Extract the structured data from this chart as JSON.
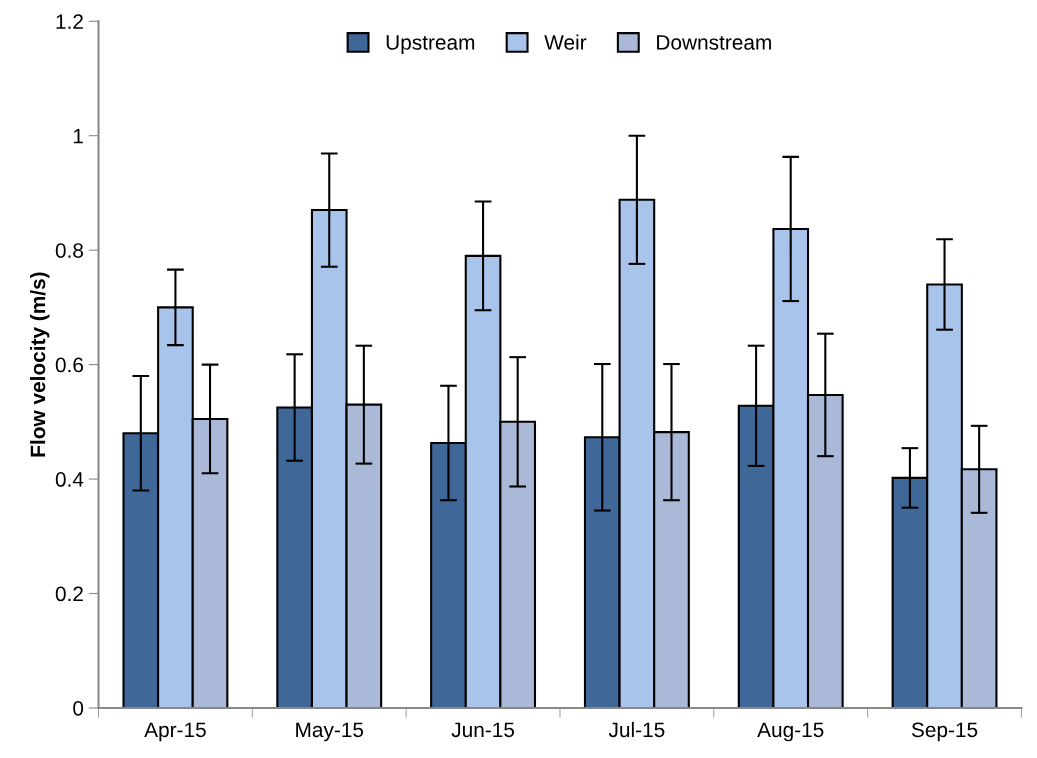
{
  "chart_data": {
    "type": "bar",
    "ylabel": "Flow velocity (m/s)",
    "categories": [
      "Apr-15",
      "May-15",
      "Jun-15",
      "Jul-15",
      "Aug-15",
      "Sep-15"
    ],
    "series": [
      {
        "name": "Upstream",
        "color": "#3f6899",
        "values": [
          0.48,
          0.525,
          0.463,
          0.473,
          0.528,
          0.402
        ],
        "errors": [
          0.1,
          0.093,
          0.1,
          0.128,
          0.105,
          0.052
        ]
      },
      {
        "name": "Weir",
        "color": "#a9c4eb",
        "values": [
          0.7,
          0.87,
          0.79,
          0.888,
          0.837,
          0.74
        ],
        "errors": [
          0.066,
          0.099,
          0.095,
          0.112,
          0.126,
          0.079
        ]
      },
      {
        "name": "Downstream",
        "color": "#aab9d8",
        "values": [
          0.505,
          0.53,
          0.5,
          0.482,
          0.547,
          0.417
        ],
        "errors": [
          0.095,
          0.103,
          0.113,
          0.119,
          0.107,
          0.076
        ]
      }
    ],
    "ylim": [
      0,
      1.2
    ],
    "yticks": [
      0,
      0.2,
      0.4,
      0.6,
      0.8,
      1,
      1.2
    ],
    "grid": false,
    "legend": "top"
  }
}
